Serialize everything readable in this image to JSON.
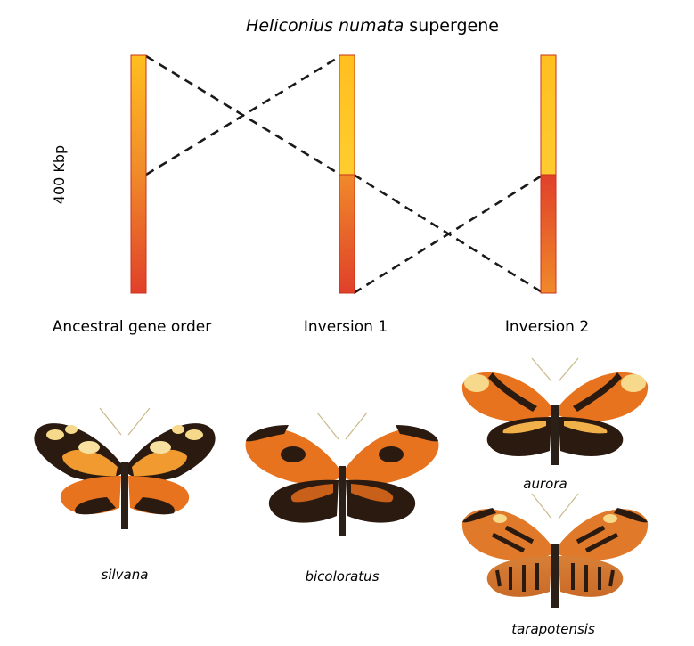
{
  "figure": {
    "title_italic": "Heliconius numata",
    "title_rest": " supergene",
    "scale_label": "400 Kbp"
  },
  "arrangements": [
    {
      "label": "Ancestral gene order"
    },
    {
      "label": "Inversion 1"
    },
    {
      "label": "Inversion 2"
    }
  ],
  "morphs": [
    {
      "name": "silvana"
    },
    {
      "name": "bicoloratus"
    },
    {
      "name": "aurora"
    },
    {
      "name": "tarapotensis"
    }
  ],
  "colors": {
    "gradient_top": "#ffbf1f",
    "gradient_mid": "#f08a2a",
    "gradient_bottom": "#e0402a",
    "bar_outline": "#c8321e",
    "dash_line": "#1a1a1a",
    "wing_dark": "#2a1a10",
    "wing_orange": "#e8731f",
    "wing_yellow": "#f6d98a"
  }
}
